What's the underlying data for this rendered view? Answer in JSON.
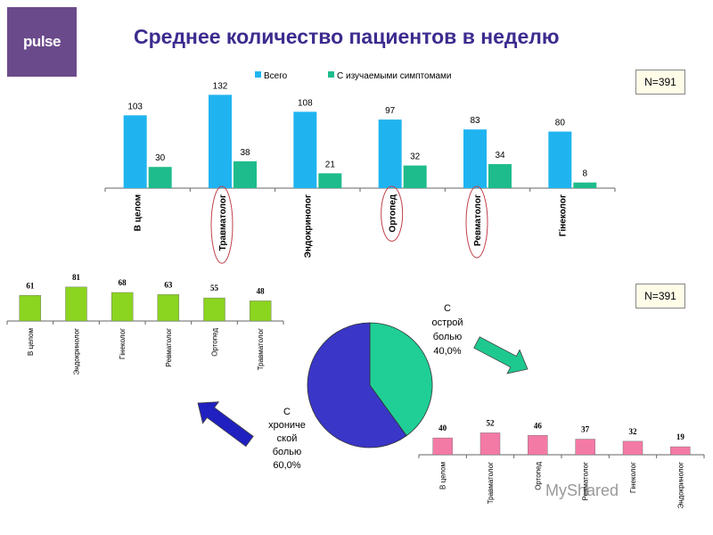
{
  "logo": {
    "text": "pulse"
  },
  "title": "Среднее количество пациентов в неделю",
  "n_labels": [
    "N=391",
    "N=391"
  ],
  "watermark": "MyShared",
  "chart_data": [
    {
      "type": "bar",
      "categories": [
        "В целом",
        "Травматолог",
        "Эндокринолог",
        "Ортопед",
        "Ревматолог",
        "Гінеколог"
      ],
      "series": [
        {
          "name": "Всего",
          "values": [
            103,
            132,
            108,
            97,
            83,
            80
          ],
          "color": "#1fb4f0"
        },
        {
          "name": "С изучаемыми симптомами",
          "values": [
            30,
            38,
            21,
            32,
            34,
            8
          ],
          "color": "#1ebc8c"
        }
      ],
      "ylim": [
        0,
        140
      ],
      "legend_position": "top",
      "highlighted_categories": [
        "Травматолог",
        "Ортопед",
        "Ревматолог"
      ]
    },
    {
      "type": "bar",
      "categories": [
        "В целом",
        "Эндокринолог",
        "Гінеколог",
        "Ревматолог",
        "Ортопед",
        "Травматолог"
      ],
      "values": [
        61,
        81,
        68,
        63,
        55,
        48
      ],
      "color": "#8bd420",
      "ylim": [
        0,
        85
      ]
    },
    {
      "type": "pie",
      "slices": [
        {
          "label": "С острой болью",
          "value": 40.0,
          "display": "40,0%",
          "color": "#1fcf96"
        },
        {
          "label": "С хронической болью",
          "value": 60.0,
          "display": "60,0%",
          "color": "#3a36c8"
        }
      ]
    },
    {
      "type": "bar",
      "categories": [
        "В целом",
        "Травматолог",
        "Ортопед",
        "Ревматолог",
        "Гінеколог",
        "Эндокринолог"
      ],
      "values": [
        40,
        52,
        46,
        37,
        32,
        19
      ],
      "color": "#f47aa6",
      "ylim": [
        0,
        55
      ]
    }
  ],
  "pie_labels": {
    "acute_lines": [
      "С",
      "острой",
      "болью",
      "40,0%"
    ],
    "chronic_lines": [
      "С",
      "хрониче",
      "ской",
      "болью",
      "60,0%"
    ]
  }
}
